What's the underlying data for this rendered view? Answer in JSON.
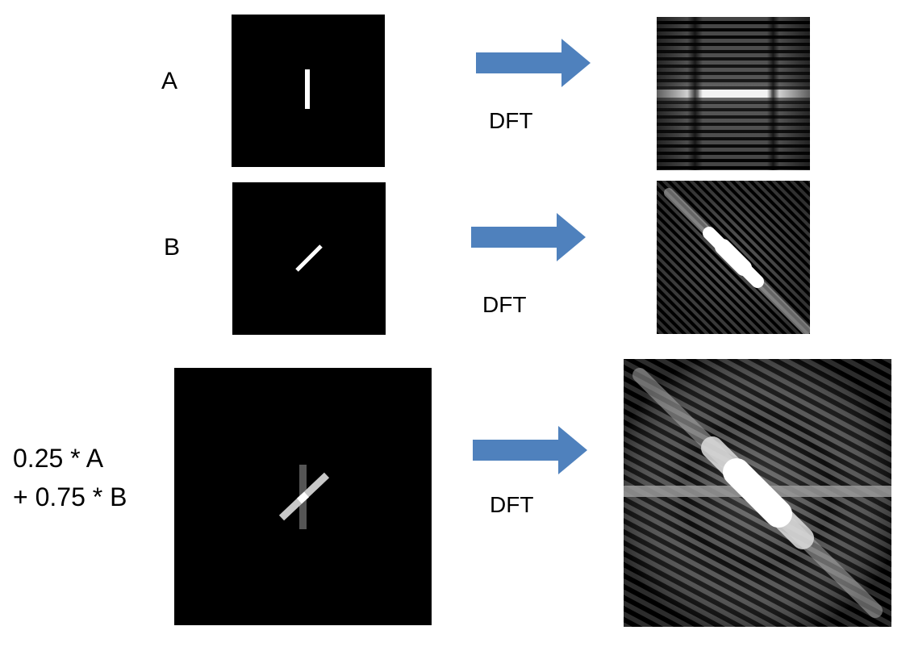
{
  "rows": [
    {
      "label": "A",
      "op": "DFT"
    },
    {
      "label": "B",
      "op": "DFT"
    },
    {
      "label_lines": [
        "0.25 * A",
        "+ 0.75 * B"
      ],
      "op": "DFT"
    }
  ],
  "colors": {
    "arrow": "#4f81bd",
    "background": "#000000",
    "line": "#ffffff"
  }
}
